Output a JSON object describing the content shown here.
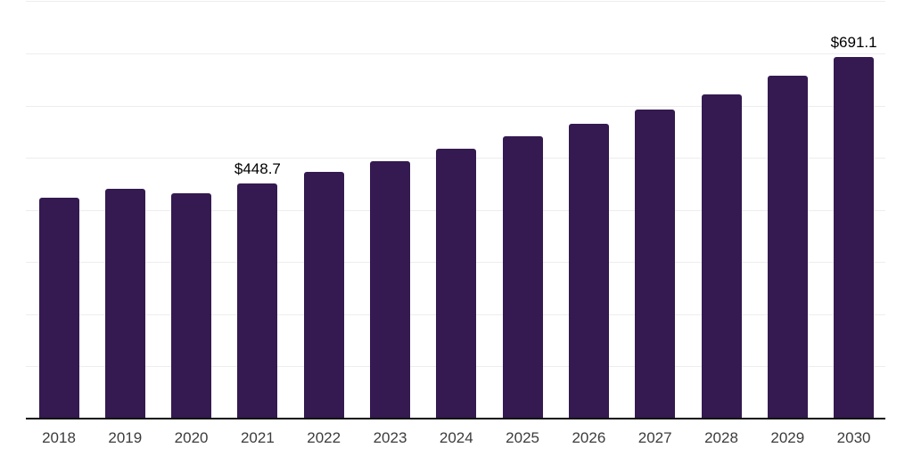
{
  "chart_data": {
    "type": "bar",
    "title": "",
    "xlabel": "",
    "ylabel": "",
    "categories": [
      "2018",
      "2019",
      "2020",
      "2021",
      "2022",
      "2023",
      "2024",
      "2025",
      "2026",
      "2027",
      "2028",
      "2029",
      "2030"
    ],
    "values": [
      421,
      438,
      431,
      448.7,
      472,
      492,
      516,
      539,
      564,
      590,
      620,
      655,
      691.1
    ],
    "data_labels": [
      {
        "category": "2021",
        "text": "$448.7"
      },
      {
        "category": "2030",
        "text": "$691.1"
      }
    ],
    "ylim": [
      0,
      800
    ],
    "gridline_step": 100,
    "grid": "horizontal-only",
    "y_axis_labels_visible": false,
    "legend": "none",
    "colors": {
      "bar": "#341a50",
      "axis_line": "#111111",
      "gridline": "#ededed",
      "tick_label": "#3c3c3c",
      "data_label": "#000000",
      "background": "#ffffff"
    }
  }
}
